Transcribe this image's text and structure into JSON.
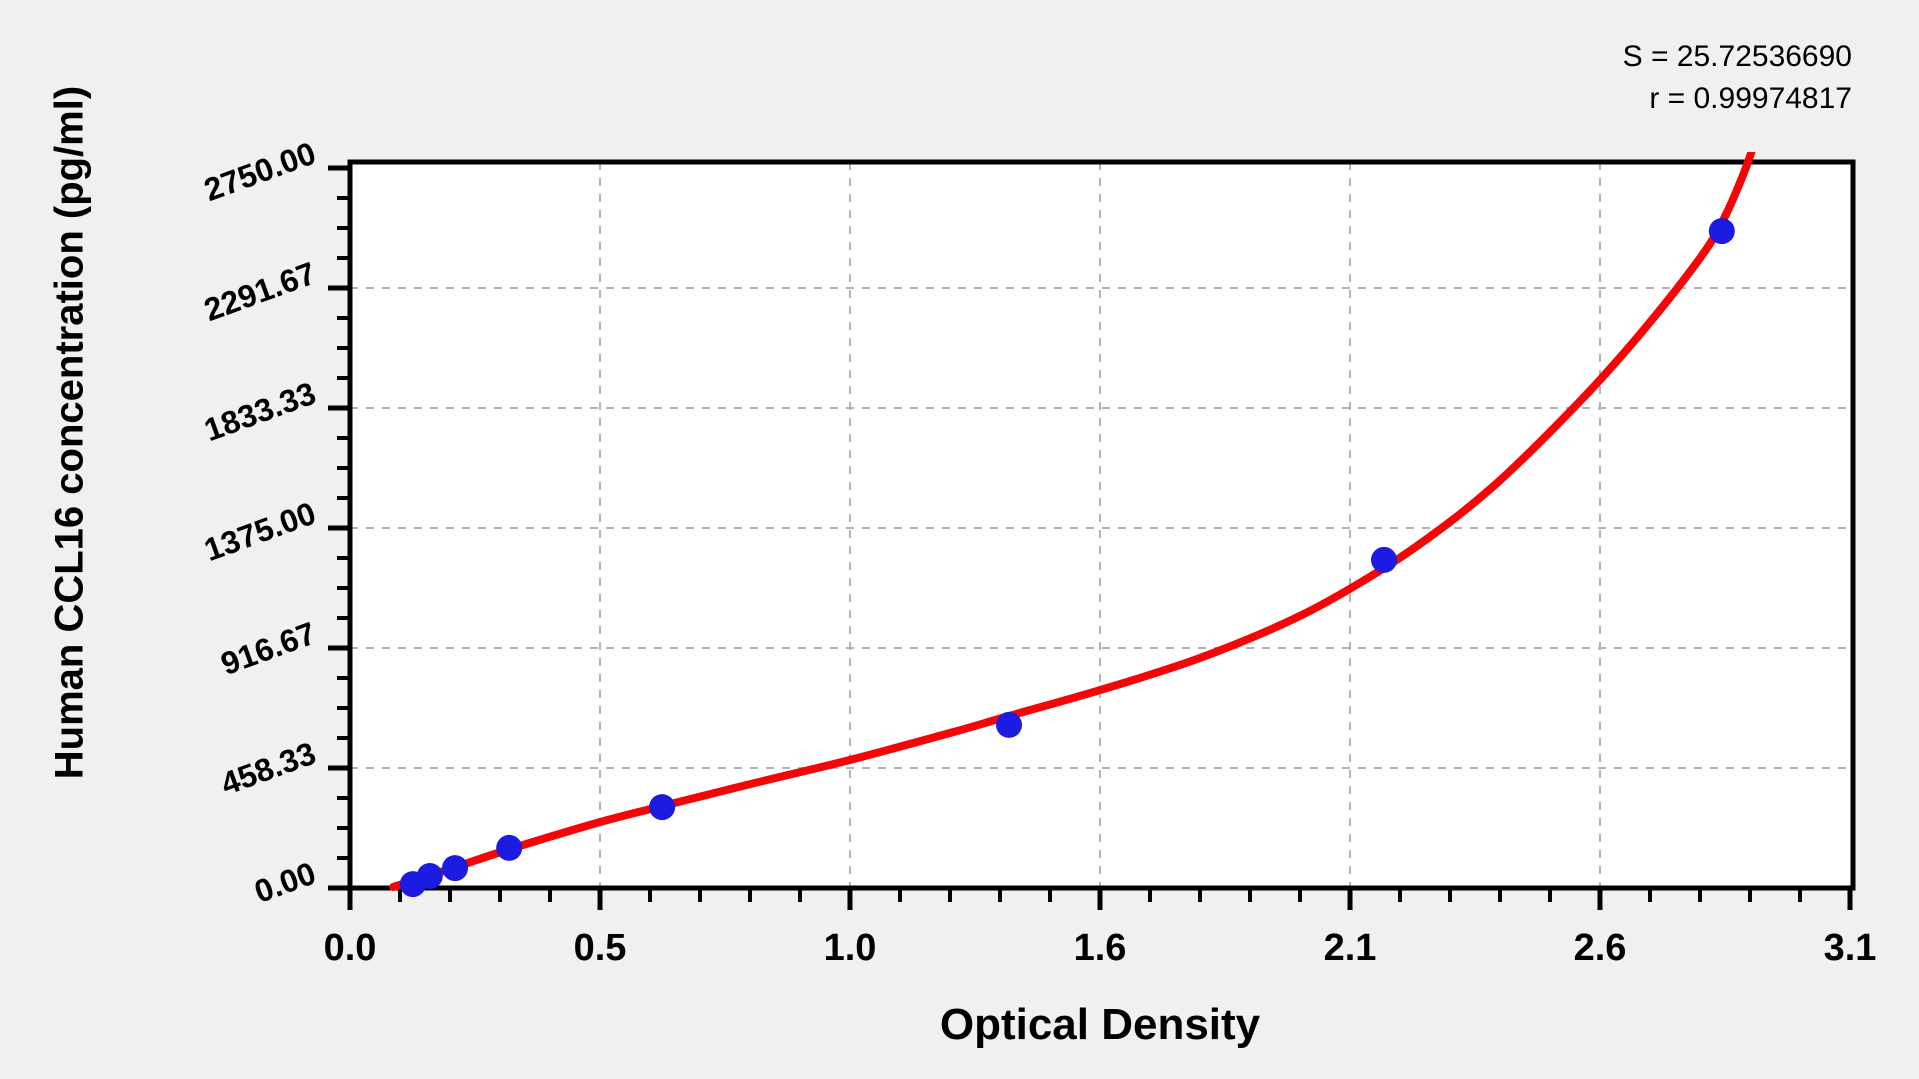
{
  "stats": {
    "s_line": "S = 25.72536690",
    "r_line": "r = 0.99974817"
  },
  "chart_data": {
    "type": "scatter",
    "title": "",
    "xlabel": "Optical Density",
    "ylabel": "Human CCL16 concentration (pg/ml)",
    "xlim": [
      0,
      3.1
    ],
    "ylim": [
      0,
      2750
    ],
    "grid": true,
    "legend": "none",
    "x_ticks": {
      "labels": [
        "0.0",
        "0.5",
        "1.0",
        "1.6",
        "2.1",
        "2.6",
        "3.1"
      ],
      "values": [
        0,
        0.5167,
        1.0333,
        1.55,
        2.0667,
        2.5833,
        3.1
      ],
      "minor_per_interval": 5
    },
    "y_ticks": {
      "labels": [
        "0.00",
        "458.33",
        "916.67",
        "1375.00",
        "1833.33",
        "2291.67",
        "2750.00"
      ],
      "values": [
        0,
        458.33,
        916.67,
        1375.0,
        1833.33,
        2291.67,
        2750.0
      ],
      "minor_per_interval": 4
    },
    "series": [
      {
        "name": "standard-points",
        "type": "scatter",
        "points": [
          {
            "od": 0.13,
            "conc": 15
          },
          {
            "od": 0.165,
            "conc": 46
          },
          {
            "od": 0.217,
            "conc": 76
          },
          {
            "od": 0.329,
            "conc": 153
          },
          {
            "od": 0.645,
            "conc": 309
          },
          {
            "od": 1.362,
            "conc": 623
          },
          {
            "od": 2.137,
            "conc": 1253
          },
          {
            "od": 2.835,
            "conc": 2509
          }
        ]
      },
      {
        "name": "fitted-curve",
        "type": "line",
        "points": [
          {
            "od": 0.089,
            "conc": 4
          },
          {
            "od": 0.207,
            "conc": 73
          },
          {
            "od": 0.331,
            "conc": 149
          },
          {
            "od": 0.517,
            "conc": 252
          },
          {
            "od": 0.645,
            "conc": 313
          },
          {
            "od": 0.827,
            "conc": 397
          },
          {
            "od": 1.033,
            "conc": 489
          },
          {
            "od": 1.24,
            "conc": 592
          },
          {
            "od": 1.362,
            "conc": 657
          },
          {
            "od": 1.55,
            "conc": 756
          },
          {
            "od": 1.757,
            "conc": 879
          },
          {
            "od": 1.963,
            "conc": 1039
          },
          {
            "od": 2.137,
            "conc": 1222
          },
          {
            "od": 2.273,
            "conc": 1398
          },
          {
            "od": 2.377,
            "conc": 1558
          },
          {
            "od": 2.48,
            "conc": 1742
          },
          {
            "od": 2.583,
            "conc": 1940
          },
          {
            "od": 2.687,
            "conc": 2162
          },
          {
            "od": 2.79,
            "conc": 2406
          },
          {
            "od": 2.836,
            "conc": 2544
          },
          {
            "od": 2.883,
            "conc": 2742
          },
          {
            "od": 2.914,
            "conc": 2914
          }
        ]
      }
    ],
    "colors": {
      "point": "#1b1be1",
      "curve": "#f50505",
      "grid": "#b3b3b3",
      "axis": "#000000",
      "plot_background": "#ffffff",
      "figure_background": "#f0f0f0"
    }
  }
}
